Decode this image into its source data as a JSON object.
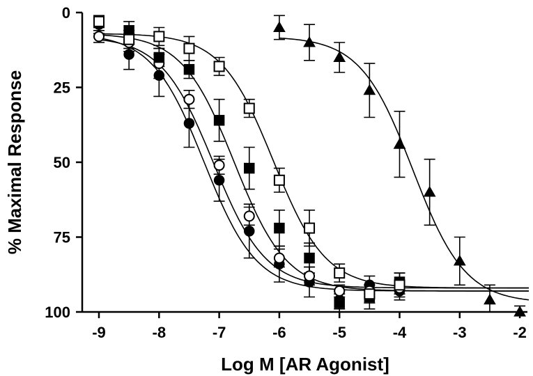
{
  "chart_data": {
    "type": "scatter",
    "xlabel": "Log M [AR Agonist]",
    "ylabel": "% Maximal Response",
    "xlim": [
      -9.2,
      -1.8
    ],
    "ylim": [
      0,
      100
    ],
    "y_inverted": true,
    "x_ticks": [
      -9,
      -8,
      -7,
      -6,
      -5,
      -4,
      -3,
      -2
    ],
    "y_ticks": [
      0,
      25,
      50,
      75,
      100
    ],
    "grid": false,
    "legend": "none",
    "series": [
      {
        "marker": "filled-circle",
        "x": [
          -9,
          -8.5,
          -8,
          -7.5,
          -7,
          -6.5,
          -6,
          -5.5,
          -5,
          -4.5,
          -4
        ],
        "y": [
          4,
          14,
          21,
          37,
          56,
          73,
          84,
          90,
          96,
          91,
          93
        ],
        "err": [
          3,
          5,
          7,
          8,
          7,
          9,
          6,
          5,
          3,
          3,
          3
        ],
        "fit": {
          "top": 7,
          "bottom": 93,
          "logEC50": -7.25,
          "hill": 1.0
        }
      },
      {
        "marker": "open-circle",
        "x": [
          -9,
          -8.5,
          -8,
          -7.5,
          -7,
          -6.5,
          -6,
          -5.5,
          -5,
          -4.5,
          -4
        ],
        "y": [
          8,
          10,
          17,
          29,
          51,
          68,
          82,
          88,
          93,
          93,
          92
        ],
        "err": [
          2,
          3,
          5,
          3,
          3,
          3,
          3,
          3,
          2,
          2,
          2
        ],
        "fit": {
          "top": 8,
          "bottom": 92,
          "logEC50": -7.1,
          "hill": 1.0
        }
      },
      {
        "marker": "filled-square",
        "x": [
          -9,
          -8.5,
          -8,
          -7.5,
          -7,
          -6.5,
          -6,
          -5.5,
          -5,
          -4.5,
          -4
        ],
        "y": [
          3,
          6,
          15,
          19,
          36,
          52,
          72,
          82,
          97,
          95,
          90
        ],
        "err": [
          2,
          3,
          3,
          3,
          7,
          7,
          6,
          5,
          3,
          4,
          3
        ],
        "fit": {
          "top": 7,
          "bottom": 93,
          "logEC50": -6.75,
          "hill": 1.0
        }
      },
      {
        "marker": "open-square",
        "x": [
          -9,
          -8.5,
          -8,
          -7.5,
          -7,
          -6.5,
          -6,
          -5.5,
          -5,
          -4.5,
          -4
        ],
        "y": [
          3,
          9,
          8,
          12,
          18,
          32,
          56,
          72,
          87,
          94,
          91
        ],
        "err": [
          2,
          3,
          3,
          4,
          3,
          3,
          4,
          6,
          3,
          3,
          4
        ],
        "fit": {
          "top": 7,
          "bottom": 92,
          "logEC50": -6.1,
          "hill": 1.0
        }
      },
      {
        "marker": "filled-triangle",
        "x": [
          -6,
          -5.5,
          -5,
          -4.5,
          -4,
          -3.5,
          -3,
          -2.5,
          -2
        ],
        "y": [
          5,
          10,
          15,
          26,
          44,
          60,
          83,
          96,
          100
        ],
        "err": [
          4,
          6,
          5,
          9,
          11,
          11,
          8,
          5,
          2
        ],
        "fit": {
          "top": 8,
          "bottom": 97,
          "logEC50": -3.78,
          "hill": 1.0,
          "x_from": -6
        }
      }
    ]
  }
}
